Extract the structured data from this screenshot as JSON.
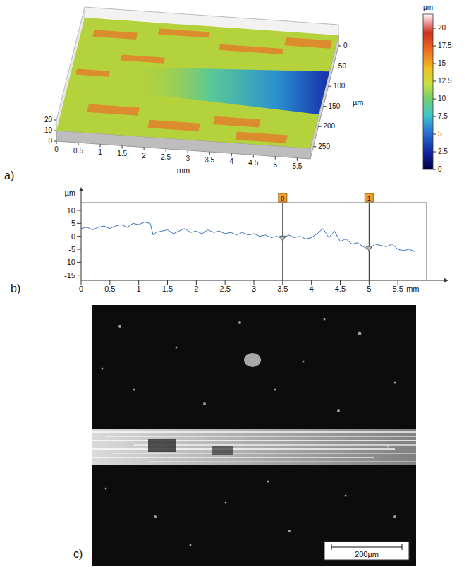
{
  "surface": {
    "letter": "a)",
    "x_label": "mm",
    "xlim": [
      0,
      5.8
    ],
    "xticks": [
      0,
      0.5,
      1,
      1.5,
      2,
      2.5,
      3,
      3.5,
      4,
      4.5,
      5,
      5.5
    ],
    "y_label": "µm",
    "ylim": [
      0,
      280
    ],
    "yticks": [
      0,
      50,
      100,
      150,
      200,
      250
    ],
    "zlim": [
      0,
      20
    ],
    "zticks": [
      0,
      10,
      20
    ],
    "colorbar": {
      "label": "µm",
      "range": [
        0,
        22
      ],
      "ticks": [
        0,
        2.5,
        5,
        7.5,
        10,
        12.5,
        15,
        17.5,
        20
      ]
    }
  },
  "chart_data": {
    "type": "line",
    "letter": "b)",
    "x_label": "mm",
    "y_label": "µm",
    "x": [
      0,
      0.1,
      0.2,
      0.3,
      0.4,
      0.5,
      0.6,
      0.7,
      0.8,
      0.9,
      1.0,
      1.1,
      1.2,
      1.25,
      1.3,
      1.4,
      1.5,
      1.6,
      1.7,
      1.8,
      1.9,
      2.0,
      2.1,
      2.2,
      2.3,
      2.4,
      2.5,
      2.6,
      2.7,
      2.8,
      2.9,
      3.0,
      3.1,
      3.2,
      3.3,
      3.4,
      3.5,
      3.6,
      3.7,
      3.8,
      3.9,
      4.0,
      4.1,
      4.2,
      4.3,
      4.4,
      4.5,
      4.6,
      4.7,
      4.8,
      4.9,
      5.0,
      5.1,
      5.2,
      5.3,
      5.4,
      5.5,
      5.6,
      5.7,
      5.8
    ],
    "values": [
      3,
      3.5,
      2.5,
      3.5,
      4,
      3,
      4,
      4.5,
      3.5,
      5,
      4.5,
      5.5,
      5,
      0.5,
      1.5,
      2,
      2.5,
      1,
      2,
      3,
      1.5,
      2,
      1,
      2.5,
      1.5,
      2,
      1,
      1.5,
      0.5,
      1.5,
      0.5,
      1,
      0,
      0.5,
      -0.5,
      0,
      -1,
      0.5,
      -0.5,
      0,
      -1,
      -0.5,
      1,
      3,
      -0.5,
      2,
      -2,
      -1,
      -3,
      -2.5,
      -4,
      -5,
      -3,
      -3.5,
      -4,
      -3,
      -5,
      -5.5,
      -5,
      -6
    ],
    "color": "#3a74c0",
    "xlim": [
      0,
      6
    ],
    "xticks": [
      0,
      0.5,
      1,
      1.5,
      2,
      2.5,
      3,
      3.5,
      4,
      4.5,
      5,
      5.5
    ],
    "ylim": [
      -17,
      13
    ],
    "yticks": [
      -15,
      -10,
      -5,
      0,
      5,
      10
    ],
    "markers": [
      {
        "label": "0",
        "x": 3.5,
        "y": -1
      },
      {
        "label": "1",
        "x": 5,
        "y": -5
      }
    ]
  },
  "micrograph": {
    "letter": "c)",
    "scale_bar": "200µm"
  }
}
